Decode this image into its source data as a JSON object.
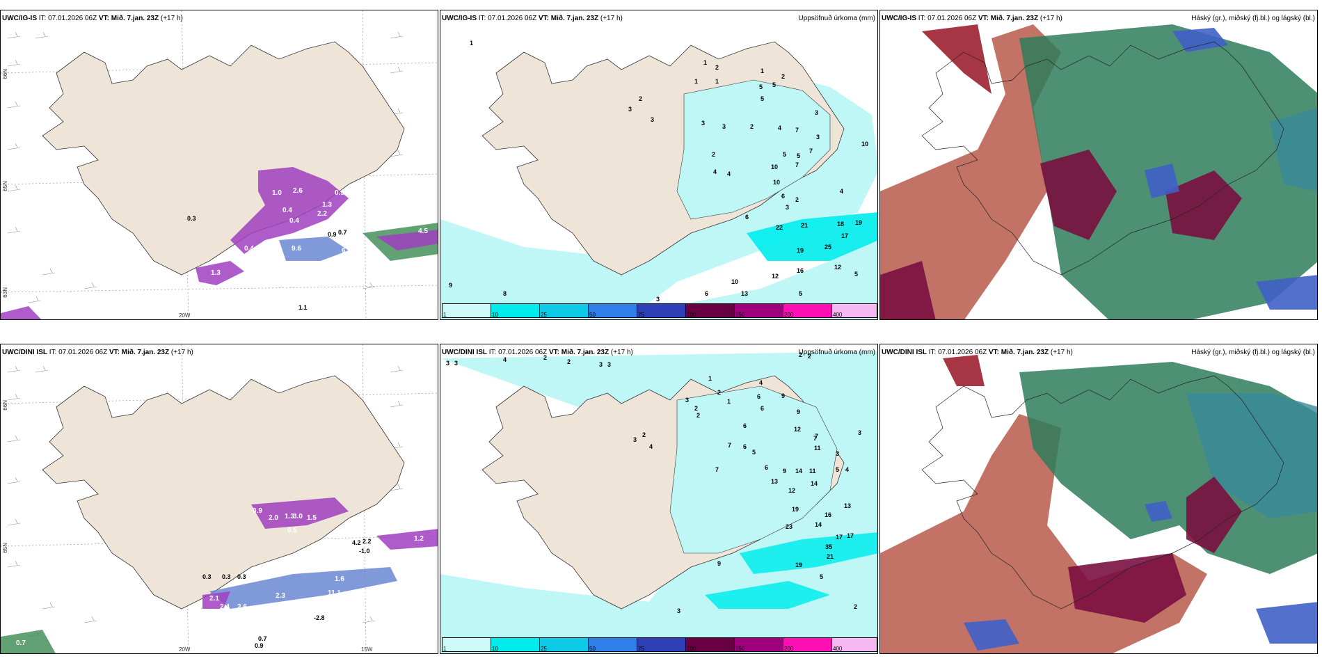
{
  "panels": {
    "p1": {
      "model": "UWC/IG-IS",
      "it_label": "IT:",
      "it_value": "07.01.2026 06Z",
      "vt_label": "VT:",
      "vt_value": "Mið. 7.jan. 23Z",
      "lead": "(+17 h)",
      "right_title": "",
      "lat_ticks": [
        "66N",
        "65N",
        "63N"
      ],
      "lon_ticks": [
        "20W"
      ],
      "values": [
        "1.0",
        "2.6",
        "0.9",
        "1.3",
        "0.4",
        "2.2",
        "0.4",
        "0.3",
        "0.4",
        "9.6",
        "6.6",
        "0.3",
        "1.0",
        "1.3",
        "0.9",
        "0.7",
        "1.0",
        "1.1",
        "2.6",
        "4.5",
        "1.4"
      ]
    },
    "p2": {
      "model": "UWC/IG-IS",
      "it_label": "IT:",
      "it_value": "07.01.2026 06Z",
      "vt_label": "VT:",
      "vt_value": "Mið. 7.jan. 23Z",
      "lead": "(+17 h)",
      "right_title": "Uppsöfnuð úrkoma (mm)",
      "values": [
        "1",
        "3",
        "2",
        "1",
        "2",
        "1",
        "1",
        "1",
        "5",
        "2",
        "3",
        "5",
        "5",
        "3",
        "3",
        "2",
        "3",
        "4",
        "7",
        "5",
        "3",
        "10",
        "5",
        "7",
        "10",
        "7",
        "10",
        "4",
        "4",
        "6",
        "2",
        "3",
        "4",
        "2",
        "6",
        "22",
        "21",
        "18",
        "19",
        "19",
        "25",
        "17",
        "12",
        "16",
        "12",
        "10",
        "8",
        "9",
        "6",
        "5",
        "3",
        "13",
        "5"
      ]
    },
    "p3": {
      "model": "UWC/IG-IS",
      "it_label": "IT:",
      "it_value": "07.01.2026 06Z",
      "vt_label": "VT:",
      "vt_value": "Mið. 7.jan. 23Z",
      "lead": "(+17 h)",
      "right_title": "Háský (gr.), miðský (fj.bl.) og lágský (bl.)"
    },
    "p4": {
      "model": "UWC/DINI ISL",
      "it_label": "IT:",
      "it_value": "07.01.2026 06Z",
      "vt_label": "VT:",
      "vt_value": "Mið. 7.jan. 23Z",
      "lead": "(+17 h)",
      "right_title": "",
      "lat_ticks": [
        "66N",
        "65N"
      ],
      "lon_ticks": [
        "20W",
        "15W"
      ],
      "values": [
        "0.9",
        "2.0",
        "1.3",
        "3.0",
        "1.5",
        "0.5",
        "0.3",
        "0.3",
        "0.3",
        "2.3",
        "11.1",
        "5.7",
        "2.4",
        "2.6",
        "2.1",
        "0.5",
        "4.2",
        "2.2",
        "1.2",
        "-1.0",
        "-2.8",
        "0.7",
        "0.9",
        "1.6",
        "0.7",
        "0.7"
      ]
    },
    "p5": {
      "model": "UWC/DINI ISL",
      "it_label": "IT:",
      "it_value": "07.01.2026 06Z",
      "vt_label": "VT:",
      "vt_value": "Mið. 7.jan. 23Z",
      "lead": "(+17 h)",
      "right_title": "Uppsöfnuð úrkoma (mm)",
      "values": [
        "3",
        "3",
        "4",
        "2",
        "2",
        "3",
        "3",
        "2",
        "2",
        "1",
        "2",
        "4",
        "9",
        "6",
        "6",
        "3",
        "2",
        "6",
        "9",
        "12",
        "2",
        "7",
        "1",
        "7",
        "3",
        "2",
        "4",
        "6",
        "5",
        "11",
        "5",
        "4",
        "3",
        "3",
        "7",
        "7",
        "6",
        "9",
        "14",
        "11",
        "13",
        "14",
        "12",
        "19",
        "16",
        "13",
        "17",
        "17",
        "23",
        "14",
        "35",
        "21",
        "19",
        "9",
        "5",
        "3",
        "2"
      ]
    },
    "p6": {
      "model": "UWC/DINI ISL",
      "it_label": "IT:",
      "it_value": "07.01.2026 06Z",
      "vt_label": "VT:",
      "vt_value": "Mið. 7.jan. 23Z",
      "lead": "(+17 h)",
      "right_title": "Háský (gr.), miðský (fj.bl.) og lágský (bl.)"
    }
  },
  "colorbar": {
    "labels": [
      "1",
      "10",
      "25",
      "50",
      "75",
      "100",
      "150",
      "200",
      "400"
    ],
    "colors": [
      "#cffafa",
      "#00ecec",
      "#0dcae8",
      "#2f7fe8",
      "#2f3fb8",
      "#6a0044",
      "#a0007c",
      "#ff10b4",
      "#f6b8f2"
    ]
  },
  "colors": {
    "land": "#efe4d8",
    "water": "#ffffff",
    "precip_light": "#bff7f7",
    "precip_mid": "#00ecec",
    "magenta": "#a040c0",
    "green_high": "#2e8b57",
    "red_low": "#9c2030",
    "blue_mid": "#3050c8"
  }
}
